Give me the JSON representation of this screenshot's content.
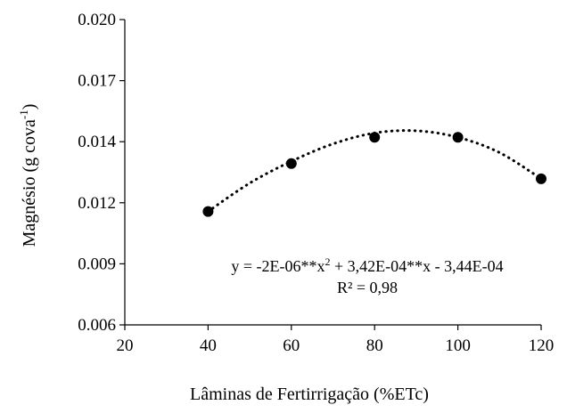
{
  "chart_data": {
    "type": "scatter",
    "title": "",
    "xlabel": "Lâminas de Fertirrigação (%ETc)",
    "ylabel_main": "Magnésio (g cova",
    "ylabel_sup": "-1",
    "ylabel_close": ")",
    "xlim": [
      20,
      120
    ],
    "ylim": [
      0.006,
      0.02
    ],
    "x_ticks": [
      "20",
      "40",
      "60",
      "80",
      "100",
      "120"
    ],
    "x_tick_values": [
      20,
      40,
      60,
      80,
      100,
      120
    ],
    "y_ticks": [
      "0.006",
      "0.009",
      "0.012",
      "0.014",
      "0.017",
      "0.020"
    ],
    "y_tick_values": [
      0.006,
      0.0088,
      0.0116,
      0.0144,
      0.0172,
      0.02
    ],
    "grid": false,
    "series": [
      {
        "x": [
          40,
          60,
          80,
          100,
          120
        ],
        "y": [
          0.0112,
          0.0134,
          0.0146,
          0.0146,
          0.0127
        ],
        "marker_color": "#000000"
      }
    ],
    "trendline": {
      "style": "dotted",
      "color": "#000000",
      "x_range": [
        40,
        120
      ],
      "points": [
        [
          40,
          0.0112
        ],
        [
          50,
          0.0125
        ],
        [
          60,
          0.0135
        ],
        [
          70,
          0.0143
        ],
        [
          80,
          0.0148
        ],
        [
          90,
          0.0149
        ],
        [
          100,
          0.0146
        ],
        [
          110,
          0.0139
        ],
        [
          120,
          0.0127
        ]
      ]
    },
    "annotations": {
      "equation_pre": "y = -2E-06**x",
      "equation_sup": "2",
      "equation_post": " + 3,42E-04**x - 3,44E-04",
      "r2": "R² = 0,98"
    }
  }
}
